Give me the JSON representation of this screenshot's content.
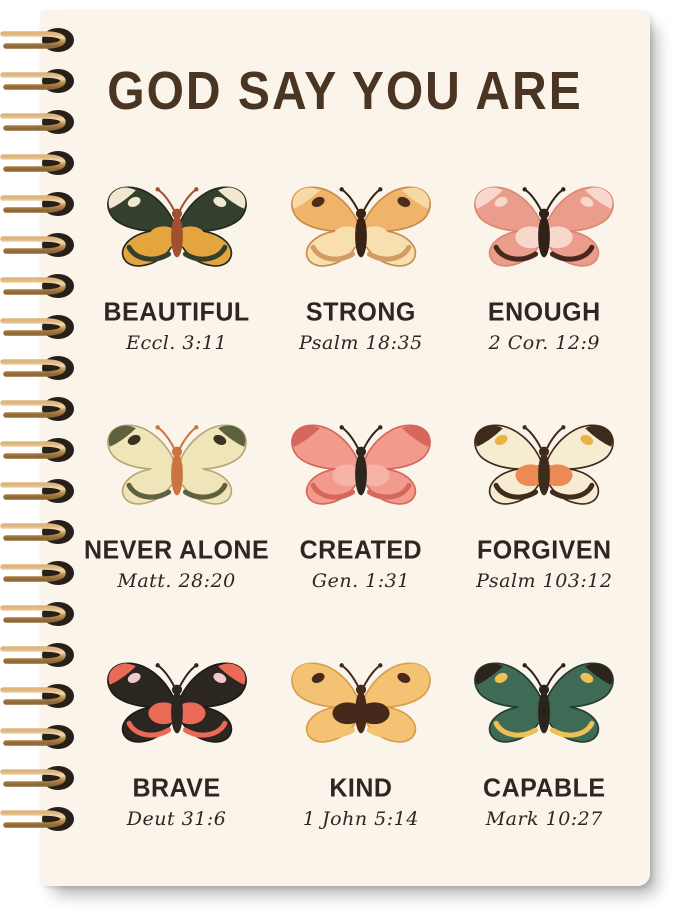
{
  "page": {
    "background": "#ffffff",
    "cover_color": "#fbf4ea"
  },
  "cover": {
    "title": "GOD SAY YOU ARE",
    "title_color": "#4a3422",
    "text_color": "#2e2620"
  },
  "binding": {
    "coil_count": 20,
    "wire_color": "#c9985c",
    "wire_highlight": "#f2d9ae",
    "wire_shadow": "#8f6a38",
    "hole_color": "#27201a"
  },
  "grid": [
    {
      "word": "BEAUTIFUL",
      "verse": "Eccl. 3:11",
      "butterfly": {
        "name": "dark-green-cream-orange-butterfly",
        "colors": {
          "upper": "#33402e",
          "upper_accent": "#f1e8cf",
          "spot": "#f1e8cf",
          "lower": "#e5a53e",
          "lower_accent": "#33402e",
          "inner": "#e5a53e",
          "body": "#a0502f",
          "outline": "#23291f"
        }
      }
    },
    {
      "word": "STRONG",
      "verse": "Psalm 18:35",
      "butterfly": {
        "name": "golden-yellow-butterfly",
        "colors": {
          "upper": "#efb469",
          "upper_accent": "#f7d9a3",
          "spot": "#4a2d1a",
          "lower": "#f7dfb0",
          "lower_accent": "#d39a64",
          "inner": "#f7dfb0",
          "body": "#3a2315",
          "outline": "#c98a4a"
        }
      }
    },
    {
      "word": "ENOUGH",
      "verse": "2 Cor. 12:9",
      "butterfly": {
        "name": "salmon-pink-butterfly",
        "colors": {
          "upper": "#eb9d8b",
          "upper_accent": "#f8d7cd",
          "spot": "#f8d7cd",
          "lower": "#eb9d8b",
          "lower_accent": "#46281f",
          "inner": "#f8d7cd",
          "body": "#2f2018",
          "outline": "#d98875"
        }
      }
    },
    {
      "word": "NEVER ALONE",
      "verse": "Matt. 28:20",
      "butterfly": {
        "name": "pale-yellow-olive-butterfly",
        "colors": {
          "upper": "#f0e5b8",
          "upper_accent": "#5c6140",
          "spot": "#3a3322",
          "lower": "#f0e5b8",
          "lower_accent": "#5c6140",
          "inner": "#f0e5b8",
          "body": "#cb7440",
          "outline": "#b7a878"
        }
      }
    },
    {
      "word": "CREATED",
      "verse": "Gen. 1:31",
      "butterfly": {
        "name": "pink-morpho-butterfly",
        "colors": {
          "upper": "#f29a8c",
          "upper_accent": "#d4685c",
          "spot": "#f29a8c",
          "lower": "#f29a8c",
          "lower_accent": "#d4685c",
          "inner": "#f6b3a7",
          "body": "#2c261f",
          "outline": "#d4685c"
        }
      }
    },
    {
      "word": "FORGIVEN",
      "verse": "Psalm 103:12",
      "butterfly": {
        "name": "cream-swallowtail-butterfly",
        "colors": {
          "upper": "#f6ecd2",
          "upper_accent": "#3f2b1b",
          "spot": "#e9b344",
          "lower": "#f6ecd2",
          "lower_accent": "#3f2b1b",
          "inner": "#ec8a55",
          "body": "#3f2b1b",
          "outline": "#3f2b1b"
        }
      }
    },
    {
      "word": "BRAVE",
      "verse": "Deut 31:6",
      "butterfly": {
        "name": "black-coral-admiral-butterfly",
        "colors": {
          "upper": "#2c2620",
          "upper_accent": "#e96a57",
          "spot": "#f0c9cd",
          "lower": "#2c2620",
          "lower_accent": "#e96a57",
          "inner": "#e96a57",
          "body": "#2c2620",
          "outline": "#1e1a15"
        }
      }
    },
    {
      "word": "KIND",
      "verse": "1 John 5:14",
      "butterfly": {
        "name": "yellow-dark-center-butterfly",
        "colors": {
          "upper": "#f3c273",
          "upper_accent": "#f3c273",
          "spot": "#46291b",
          "lower": "#f3c273",
          "lower_accent": "#f3c273",
          "inner": "#46291b",
          "body": "#46291b",
          "outline": "#d99c4e"
        }
      }
    },
    {
      "word": "CAPABLE",
      "verse": "Mark 10:27",
      "butterfly": {
        "name": "teal-green-gold-butterfly",
        "colors": {
          "upper": "#3f6b56",
          "upper_accent": "#2a241b",
          "spot": "#eec155",
          "lower": "#3f6b56",
          "lower_accent": "#eec155",
          "inner": "#3f6b56",
          "body": "#2a241b",
          "outline": "#263c2f"
        }
      }
    }
  ]
}
